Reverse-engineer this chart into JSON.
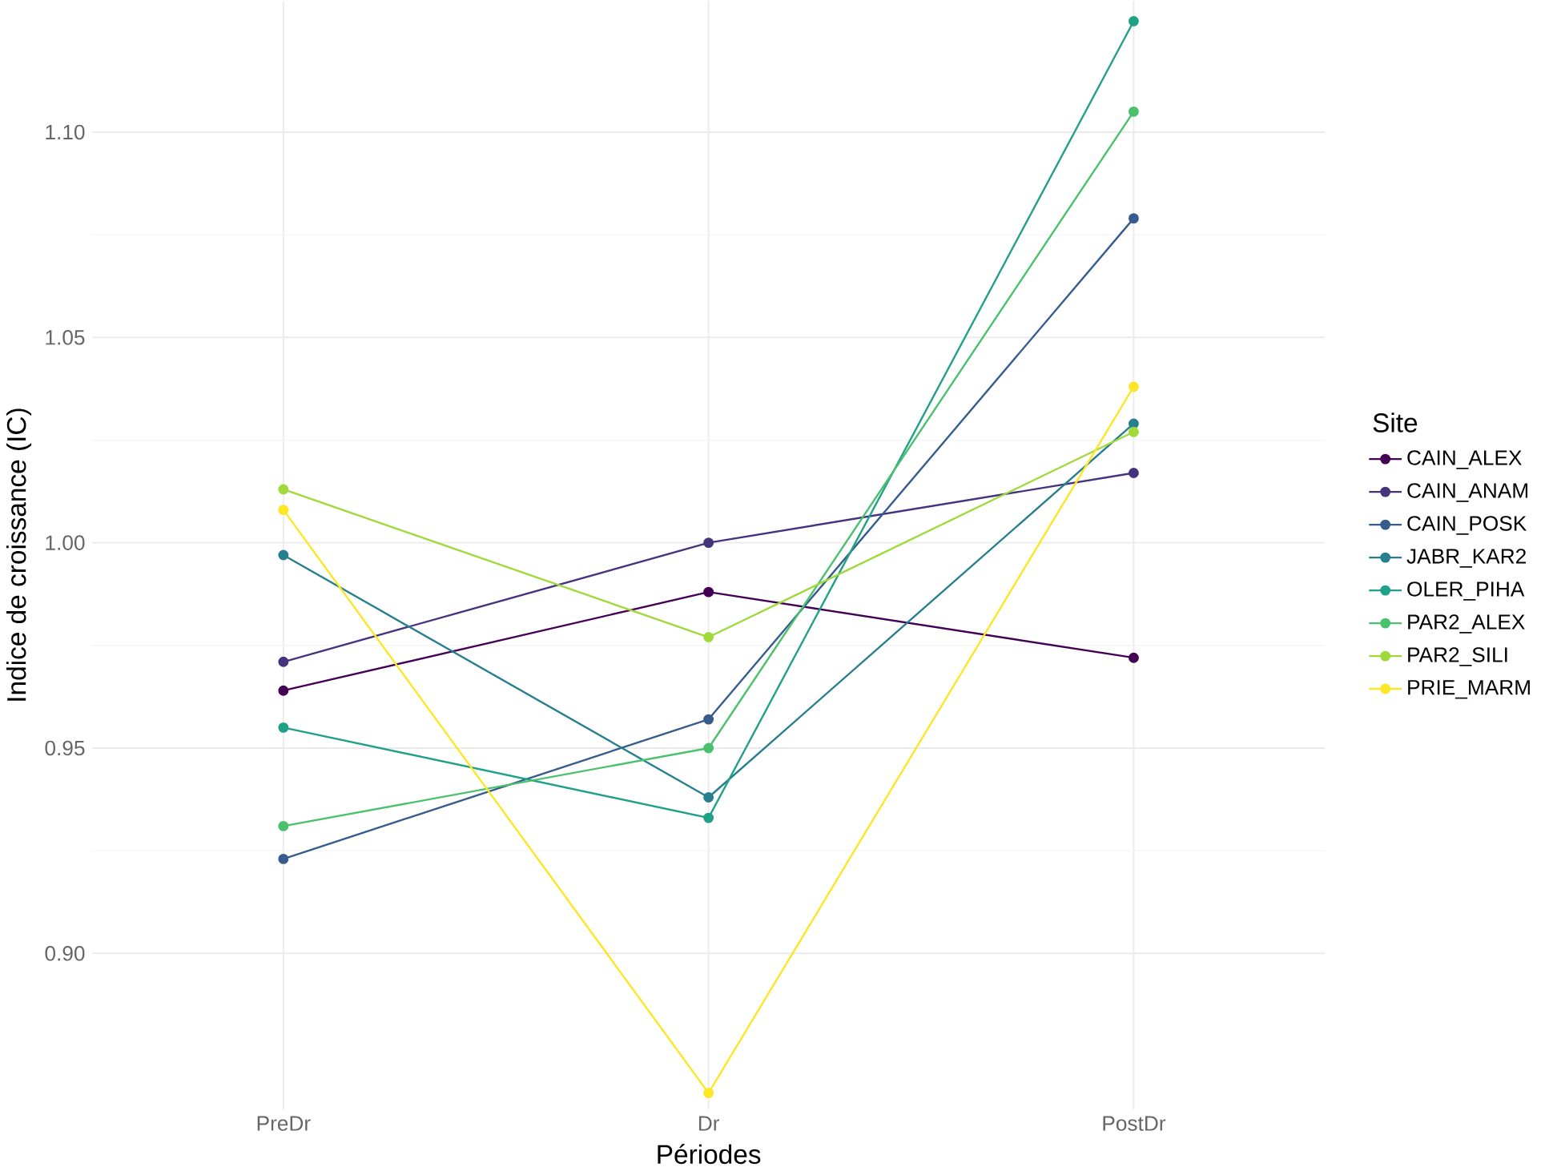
{
  "chart_data": {
    "type": "line",
    "xlabel": "Périodes",
    "ylabel": "Indice de croissance (IC)",
    "legend_title": "Site",
    "categories": [
      "PreDr",
      "Dr",
      "PostDr"
    ],
    "series": [
      {
        "name": "CAIN_ALEX",
        "color": "#440154",
        "values": [
          0.964,
          0.988,
          0.972
        ]
      },
      {
        "name": "CAIN_ANAM",
        "color": "#46337e",
        "values": [
          0.971,
          1.0,
          1.017
        ]
      },
      {
        "name": "CAIN_POSK",
        "color": "#365c8d",
        "values": [
          0.923,
          0.957,
          1.079
        ]
      },
      {
        "name": "JABR_KAR2",
        "color": "#277f8e",
        "values": [
          0.997,
          0.938,
          1.029
        ]
      },
      {
        "name": "OLER_PIHA",
        "color": "#1fa187",
        "values": [
          0.955,
          0.933,
          1.127
        ]
      },
      {
        "name": "PAR2_ALEX",
        "color": "#4ac16d",
        "values": [
          0.931,
          0.95,
          1.105
        ]
      },
      {
        "name": "PAR2_SILI",
        "color": "#9fda3a",
        "values": [
          1.013,
          0.977,
          1.027
        ]
      },
      {
        "name": "PRIE_MARM",
        "color": "#fde725",
        "values": [
          1.008,
          0.866,
          1.038
        ]
      }
    ],
    "ylim": [
      0.862,
      1.132
    ],
    "yticks": [
      {
        "value": 0.9,
        "label": "0.90"
      },
      {
        "value": 0.95,
        "label": "0.95"
      },
      {
        "value": 1.0,
        "label": "1.00"
      },
      {
        "value": 1.05,
        "label": "1.05"
      },
      {
        "value": 1.1,
        "label": "1.10"
      }
    ],
    "grid": true,
    "legend": "right",
    "marker": "circle",
    "line_style": "solid"
  }
}
